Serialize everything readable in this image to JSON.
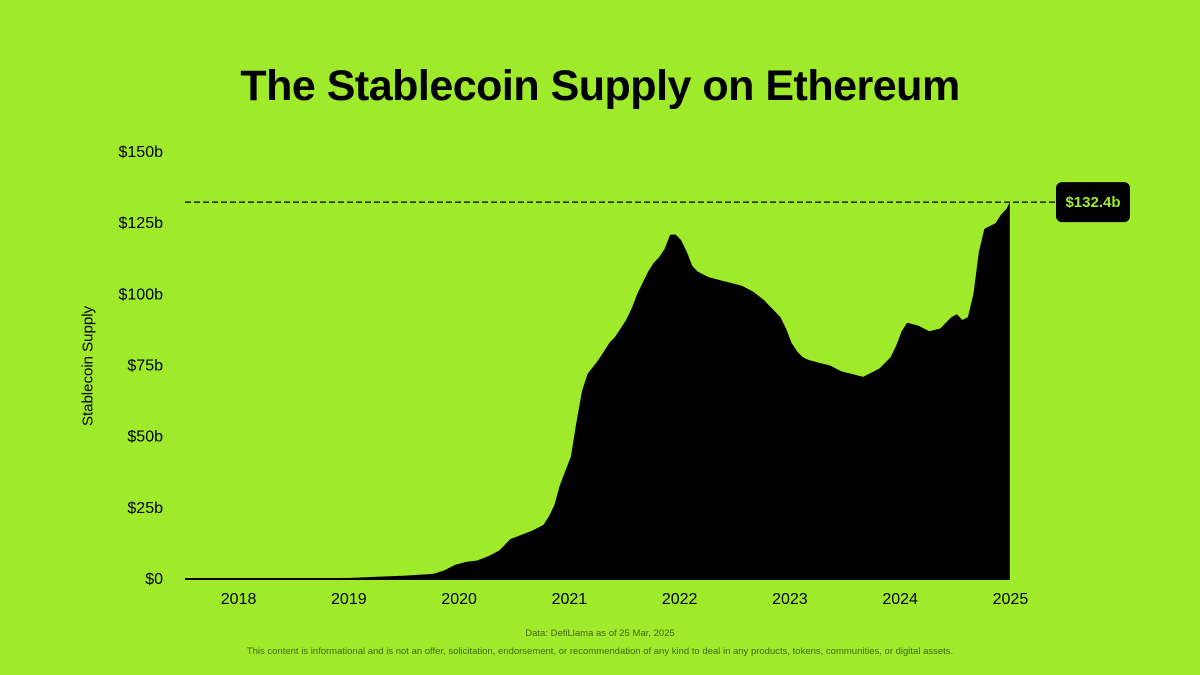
{
  "chart_data": {
    "type": "area",
    "title": "The Stablecoin Supply on Ethereum",
    "ylabel": "Stablecoin Supply",
    "xlabel": "",
    "ylim": [
      0,
      150
    ],
    "y_ticks": [
      {
        "value": 0,
        "label": "$0"
      },
      {
        "value": 25,
        "label": "$25b"
      },
      {
        "value": 50,
        "label": "$50b"
      },
      {
        "value": 75,
        "label": "$75b"
      },
      {
        "value": 100,
        "label": "$100b"
      },
      {
        "value": 125,
        "label": "$125b"
      },
      {
        "value": 150,
        "label": "$150b"
      }
    ],
    "xlim": [
      2017.75,
      2025.25
    ],
    "x_ticks": [
      {
        "value": 2018,
        "label": "2018"
      },
      {
        "value": 2019,
        "label": "2019"
      },
      {
        "value": 2020,
        "label": "2020"
      },
      {
        "value": 2021,
        "label": "2021"
      },
      {
        "value": 2022,
        "label": "2022"
      },
      {
        "value": 2023,
        "label": "2023"
      },
      {
        "value": 2024,
        "label": "2024"
      },
      {
        "value": 2025,
        "label": "2025"
      }
    ],
    "fill_color": "#000000",
    "series": [
      {
        "x": [
          2017.75,
          2018.0,
          2018.5,
          2019.0,
          2019.25,
          2019.5,
          2019.75,
          2020.0,
          2020.1,
          2020.2,
          2020.3,
          2020.4,
          2020.5,
          2020.6,
          2020.7,
          2020.8,
          2020.9,
          2021.0,
          2021.05,
          2021.1,
          2021.15,
          2021.2,
          2021.25,
          2021.3,
          2021.35,
          2021.4,
          2021.45,
          2021.5,
          2021.55,
          2021.6,
          2021.65,
          2021.7,
          2021.75,
          2021.8,
          2021.85,
          2021.9,
          2021.95,
          2022.0,
          2022.05,
          2022.1,
          2022.15,
          2022.2,
          2022.25,
          2022.3,
          2022.35,
          2022.4,
          2022.5,
          2022.6,
          2022.7,
          2022.8,
          2022.9,
          2023.0,
          2023.05,
          2023.1,
          2023.15,
          2023.2,
          2023.25,
          2023.3,
          2023.35,
          2023.4,
          2023.5,
          2023.6,
          2023.7,
          2023.8,
          2023.9,
          2024.0,
          2024.05,
          2024.1,
          2024.15,
          2024.2,
          2024.25,
          2024.3,
          2024.4,
          2024.5,
          2024.6,
          2024.65,
          2024.7,
          2024.75,
          2024.8,
          2024.85,
          2024.9,
          2024.95,
          2025.0,
          2025.05,
          2025.1,
          2025.15,
          2025.2,
          2025.23
        ],
        "values": [
          0.1,
          0.2,
          0.2,
          0.3,
          0.4,
          0.8,
          1.2,
          1.8,
          3,
          5,
          6,
          6.5,
          8,
          10,
          14,
          15.5,
          17,
          19,
          22,
          26,
          33,
          38,
          43,
          55,
          66,
          72,
          74.5,
          77,
          80,
          83,
          85,
          88,
          91,
          95,
          100,
          104,
          108,
          111,
          113,
          116,
          121,
          121,
          119,
          115,
          110,
          108,
          106,
          105,
          104,
          103,
          101,
          98,
          96,
          94,
          92,
          88,
          83,
          80,
          78,
          77,
          76,
          75,
          73,
          72,
          71,
          73,
          74,
          76,
          78,
          82,
          87,
          90,
          89,
          87,
          88,
          90,
          92,
          93,
          91,
          92,
          100,
          115,
          123,
          124,
          125,
          128,
          130,
          132.4
        ]
      }
    ],
    "reference_line": {
      "value": 132.4,
      "label": "$132.4b",
      "style": "dashed"
    }
  },
  "footer": {
    "source": "Data: DefiLlama as of 25 Mar, 2025",
    "disclaimer": "This content is informational and is not an offer, solicitation, endorsement, or recommendation of any kind to deal in any products, tokens, communities, or digital assets."
  }
}
